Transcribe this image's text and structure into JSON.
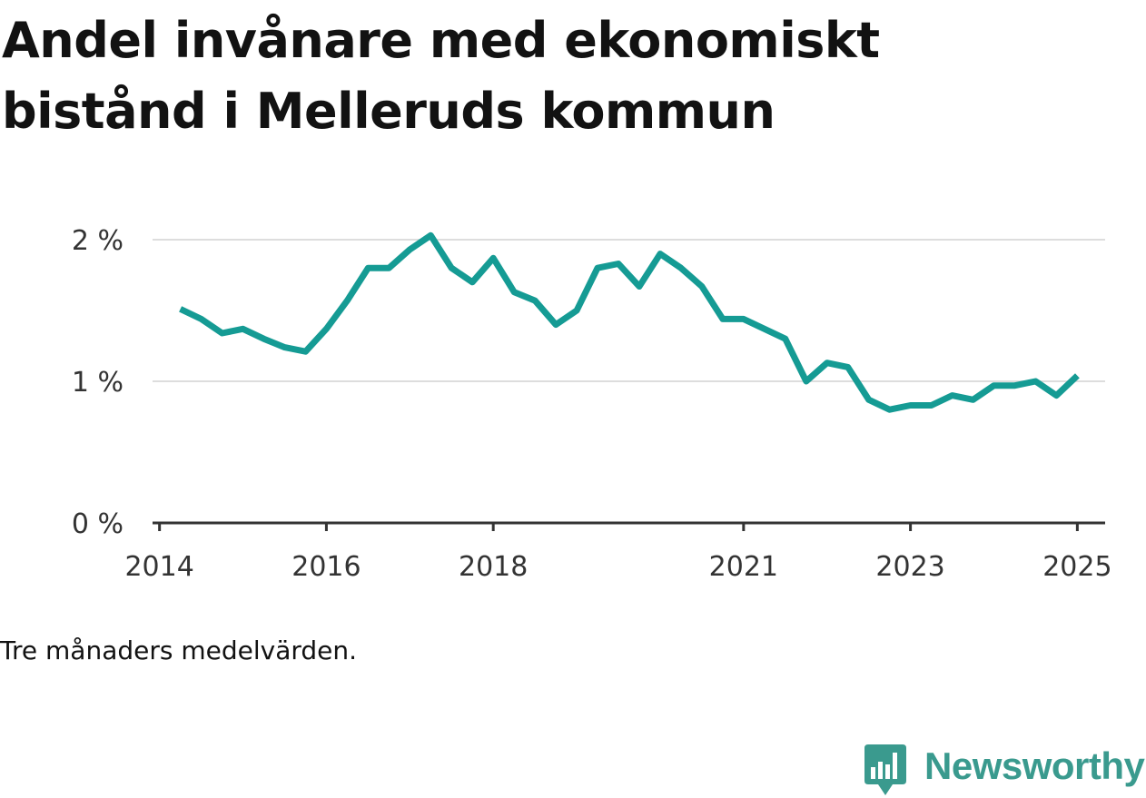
{
  "title": "Andel invånare med ekonomiskt bistånd i Melleruds kommun",
  "note": "Tre månaders medelvärden.",
  "brand": {
    "name": "Newsworthy",
    "icon": "newsworthy-logo-icon",
    "color": "#3a9a8e"
  },
  "colors": {
    "line": "#159b94",
    "grid": "#dddddd",
    "axis": "#333333"
  },
  "chart_data": {
    "type": "line",
    "title": "Andel invånare med ekonomiskt bistånd i Melleruds kommun",
    "xlabel": "",
    "ylabel": "",
    "y_tick_labels": [
      "0 %",
      "1 %",
      "2 %"
    ],
    "y_ticks": [
      0,
      1,
      2
    ],
    "ylim": [
      0,
      2
    ],
    "x_tick_labels": [
      "2014",
      "2016",
      "2018",
      "2021",
      "2023",
      "2025"
    ],
    "x_ticks": [
      "2014-01",
      "2016-01",
      "2018-01",
      "2021-01",
      "2023-01",
      "2025-01"
    ],
    "xlim": [
      "2013-12",
      "2025-05"
    ],
    "grid": true,
    "series": [
      {
        "x": [
          "2014-04",
          "2014-07",
          "2014-10",
          "2015-01",
          "2015-04",
          "2015-07",
          "2015-10",
          "2016-01",
          "2016-04",
          "2016-07",
          "2016-10",
          "2017-01",
          "2017-04",
          "2017-07",
          "2017-10",
          "2018-01",
          "2018-04",
          "2018-07",
          "2018-10",
          "2019-01",
          "2019-04",
          "2019-07",
          "2019-10",
          "2020-01",
          "2020-04",
          "2020-07",
          "2020-10",
          "2021-01",
          "2021-04",
          "2021-07",
          "2021-10",
          "2022-01",
          "2022-04",
          "2022-07",
          "2022-10",
          "2023-01",
          "2023-04",
          "2023-07",
          "2023-10",
          "2024-01",
          "2024-04",
          "2024-07",
          "2024-10",
          "2025-01"
        ],
        "values": [
          1.51,
          1.44,
          1.34,
          1.37,
          1.3,
          1.24,
          1.21,
          1.37,
          1.57,
          1.8,
          1.8,
          1.93,
          2.03,
          1.8,
          1.7,
          1.87,
          1.63,
          1.57,
          1.4,
          1.5,
          1.8,
          1.83,
          1.67,
          1.9,
          1.8,
          1.67,
          1.44,
          1.44,
          1.37,
          1.3,
          1.0,
          1.13,
          1.1,
          0.87,
          0.8,
          0.83,
          0.83,
          0.9,
          0.87,
          0.97,
          0.97,
          1.0,
          0.9,
          1.04
        ]
      }
    ]
  }
}
